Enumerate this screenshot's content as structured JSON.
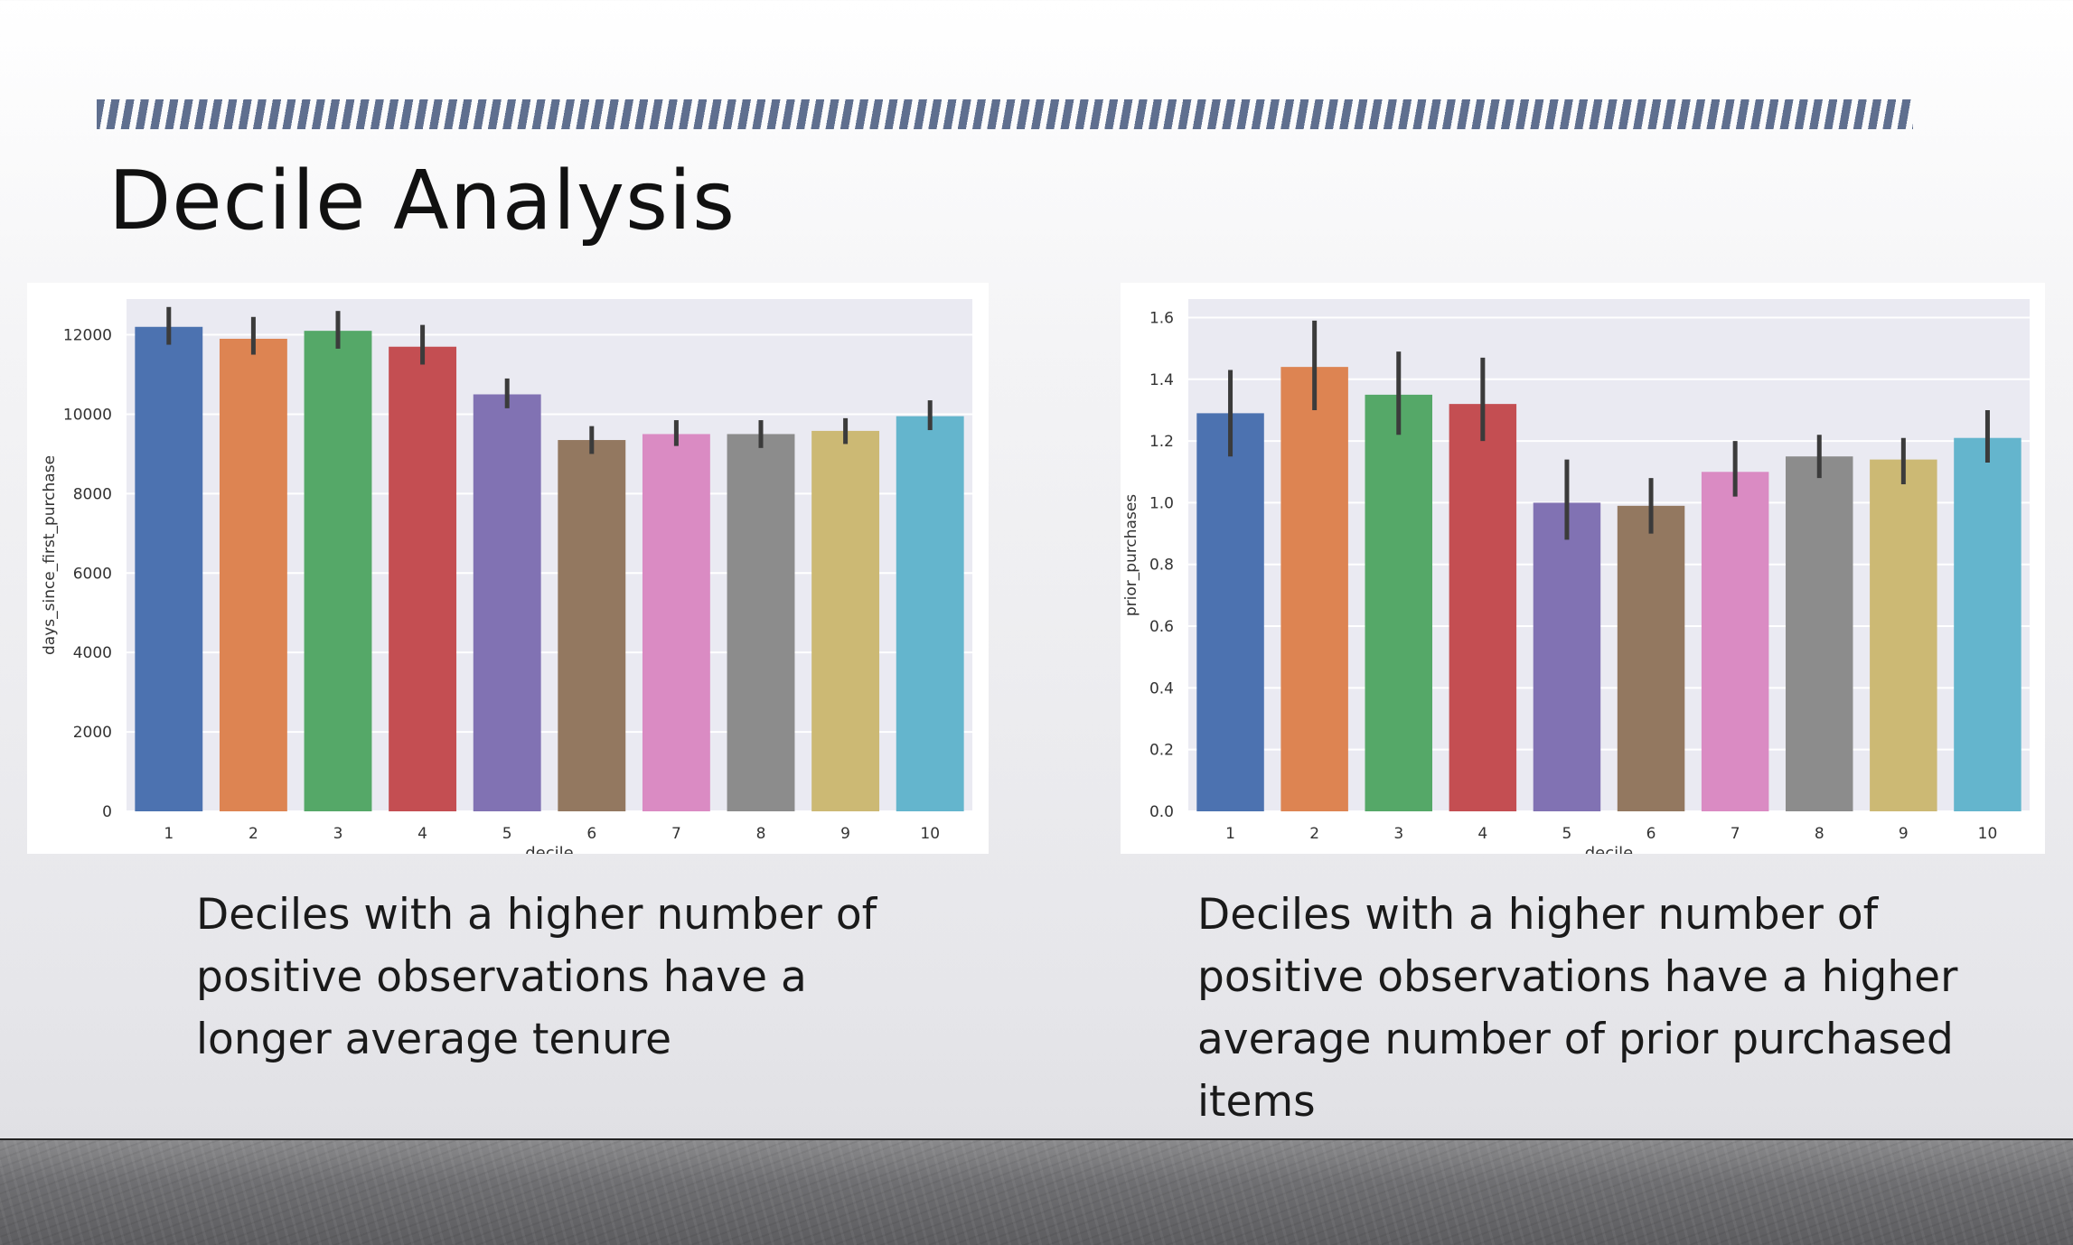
{
  "slide": {
    "title": "Decile Analysis",
    "caption_left": "Deciles with a higher number of positive observations have a longer average tenure",
    "caption_right": "Deciles with a higher number of positive observations have a higher average number of prior purchased items"
  },
  "colors": {
    "plot_bg": "#eaeaf2",
    "grid": "#ffffff",
    "errorbar": "#3b3b3b",
    "palette": [
      "#4c72b0",
      "#dd8452",
      "#55a868",
      "#c44e52",
      "#8172b3",
      "#937860",
      "#da8bc3",
      "#8c8c8c",
      "#ccb974",
      "#64b5cd"
    ]
  },
  "chart_data": [
    {
      "type": "bar",
      "categories": [
        "1",
        "2",
        "3",
        "4",
        "5",
        "6",
        "7",
        "8",
        "9",
        "10"
      ],
      "values": [
        12200,
        11900,
        12100,
        11700,
        10500,
        9350,
        9500,
        9500,
        9580,
        9950
      ],
      "error_low": [
        11750,
        11500,
        11650,
        11250,
        10150,
        9000,
        9200,
        9150,
        9250,
        9600
      ],
      "error_high": [
        12700,
        12450,
        12600,
        12250,
        10900,
        9700,
        9850,
        9850,
        9900,
        10350
      ],
      "xlabel": "decile",
      "ylabel": "days_since_first_purchase",
      "ylim": [
        0,
        12900
      ],
      "yticks": [
        0,
        2000,
        4000,
        6000,
        8000,
        10000,
        12000
      ],
      "ytick_labels": [
        "0",
        "2000",
        "4000",
        "6000",
        "8000",
        "10000",
        "12000"
      ],
      "grid": true,
      "legend": "none"
    },
    {
      "type": "bar",
      "categories": [
        "1",
        "2",
        "3",
        "4",
        "5",
        "6",
        "7",
        "8",
        "9",
        "10"
      ],
      "values": [
        1.29,
        1.44,
        1.35,
        1.32,
        1.0,
        0.99,
        1.1,
        1.15,
        1.14,
        1.21
      ],
      "error_low": [
        1.15,
        1.3,
        1.22,
        1.2,
        0.88,
        0.9,
        1.02,
        1.08,
        1.06,
        1.13
      ],
      "error_high": [
        1.43,
        1.59,
        1.49,
        1.47,
        1.14,
        1.08,
        1.2,
        1.22,
        1.21,
        1.3
      ],
      "xlabel": "decile",
      "ylabel": "prior_purchases",
      "ylim": [
        0,
        1.66
      ],
      "yticks": [
        0,
        0.2,
        0.4,
        0.6,
        0.8,
        1.0,
        1.2,
        1.4,
        1.6
      ],
      "ytick_labels": [
        "0.0",
        "0.2",
        "0.4",
        "0.6",
        "0.8",
        "1.0",
        "1.2",
        "1.4",
        "1.6"
      ],
      "grid": true,
      "legend": "none"
    }
  ]
}
